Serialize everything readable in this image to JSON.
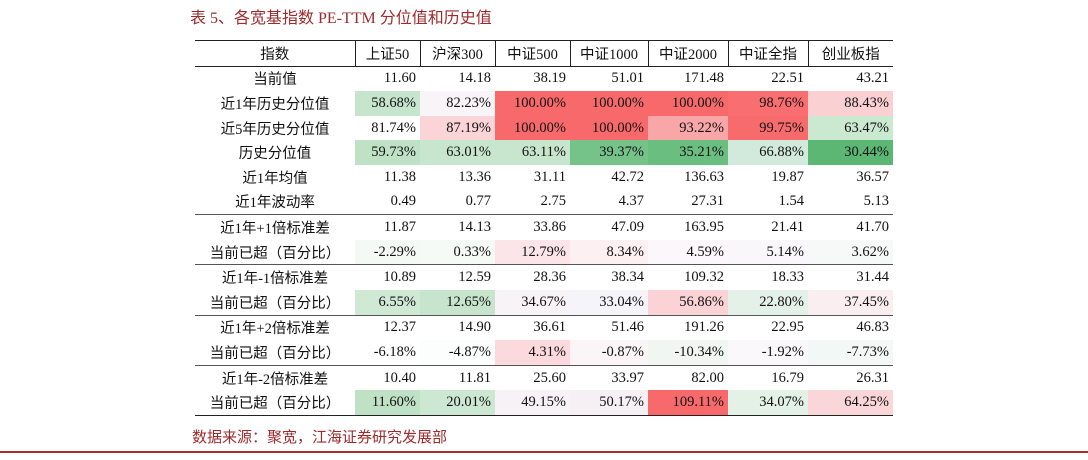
{
  "header": {
    "title": "表 5、各宽基指数 PE-TTM 分位值和历史值"
  },
  "table": {
    "columns": [
      "指数",
      "上证50",
      "沪深300",
      "中证500",
      "中证1000",
      "中证2000",
      "中证全指",
      "创业板指"
    ],
    "rows": [
      [
        "当前值",
        "11.60",
        "14.18",
        "38.19",
        "51.01",
        "171.48",
        "22.51",
        "43.21"
      ],
      [
        "近1年历史分位值",
        "58.68%",
        "82.23%",
        "100.00%",
        "100.00%",
        "100.00%",
        "98.76%",
        "88.43%"
      ],
      [
        "近5年历史分位值",
        "81.74%",
        "87.19%",
        "100.00%",
        "100.00%",
        "93.22%",
        "99.75%",
        "63.47%"
      ],
      [
        "历史分位值",
        "59.73%",
        "63.01%",
        "63.11%",
        "39.37%",
        "35.21%",
        "66.88%",
        "30.44%"
      ],
      [
        "近1年均值",
        "11.38",
        "13.36",
        "31.11",
        "42.72",
        "136.63",
        "19.87",
        "36.57"
      ],
      [
        "近1年波动率",
        "0.49",
        "0.77",
        "2.75",
        "4.37",
        "27.31",
        "1.54",
        "5.13"
      ],
      [
        "近1年+1倍标准差",
        "11.87",
        "14.13",
        "33.86",
        "47.09",
        "163.95",
        "21.41",
        "41.70"
      ],
      [
        "当前已超（百分比）",
        "-2.29%",
        "0.33%",
        "12.79%",
        "8.34%",
        "4.59%",
        "5.14%",
        "3.62%"
      ],
      [
        "近1年-1倍标准差",
        "10.89",
        "12.59",
        "28.36",
        "38.34",
        "109.32",
        "18.33",
        "31.44"
      ],
      [
        "当前已超（百分比）",
        "6.55%",
        "12.65%",
        "34.67%",
        "33.04%",
        "56.86%",
        "22.80%",
        "37.45%"
      ],
      [
        "近1年+2倍标准差",
        "12.37",
        "14.90",
        "36.61",
        "51.46",
        "191.26",
        "22.95",
        "46.83"
      ],
      [
        "当前已超（百分比）",
        "-6.18%",
        "-4.87%",
        "4.31%",
        "-0.87%",
        "-10.34%",
        "-1.92%",
        "-7.73%"
      ],
      [
        "近1年-2倍标准差",
        "10.40",
        "11.81",
        "25.60",
        "33.97",
        "82.00",
        "16.79",
        "26.31"
      ],
      [
        "当前已超（百分比）",
        "11.60%",
        "20.01%",
        "49.15%",
        "50.17%",
        "109.11%",
        "34.07%",
        "64.25%"
      ]
    ]
  },
  "source": "数据来源：聚宽，江海证券研究发展部"
}
